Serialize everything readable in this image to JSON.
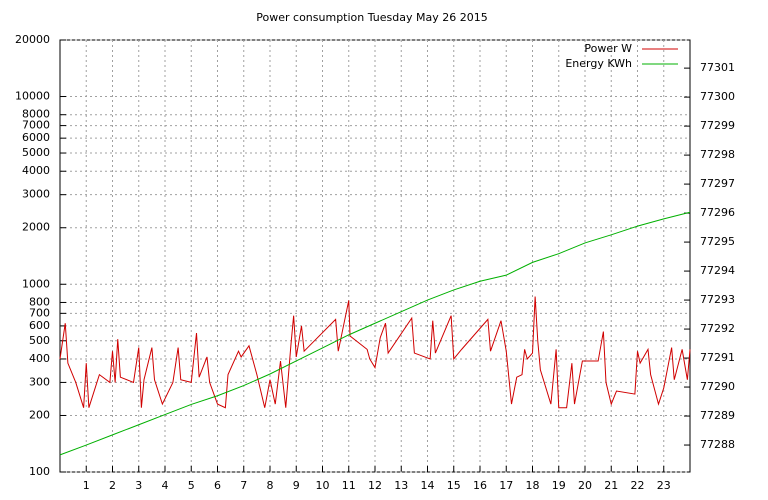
{
  "chart_data": {
    "type": "line",
    "title": "Power consumption Tuesday May 26 2015",
    "xlim": [
      0,
      24
    ],
    "xticks": [
      1,
      2,
      3,
      4,
      5,
      6,
      7,
      8,
      9,
      10,
      11,
      12,
      13,
      14,
      15,
      16,
      17,
      18,
      19,
      20,
      21,
      22,
      23
    ],
    "ylim": [
      100,
      20000
    ],
    "log_y": true,
    "yticks": [
      100,
      200,
      300,
      400,
      500,
      600,
      700,
      800,
      1000,
      2000,
      3000,
      4000,
      5000,
      6000,
      7000,
      8000,
      10000,
      20000
    ],
    "y2lim": [
      77287.07,
      77301.97
    ],
    "y2ticks": [
      77288,
      77289,
      77290,
      77291,
      77292,
      77293,
      77294,
      77295,
      77296,
      77297,
      77298,
      77299,
      77300,
      77301
    ],
    "grid": true,
    "legend": "top-right",
    "series": [
      {
        "name": "Power W",
        "color": "#d00000",
        "x": [
          0,
          0.2,
          0.3,
          0.6,
          0.9,
          1.0,
          1.1,
          1.5,
          1.9,
          2.0,
          2.1,
          2.2,
          2.3,
          2.8,
          3.0,
          3.1,
          3.2,
          3.5,
          3.6,
          3.9,
          4.3,
          4.5,
          4.6,
          5.0,
          5.2,
          5.3,
          5.6,
          5.7,
          6.0,
          6.3,
          6.4,
          6.8,
          6.9,
          7.2,
          7.5,
          7.8,
          8.0,
          8.2,
          8.4,
          8.6,
          8.8,
          8.9,
          9.0,
          9.2,
          9.3,
          10.5,
          10.6,
          11.0,
          11.05,
          11.7,
          11.8,
          12.0,
          12.2,
          12.4,
          12.5,
          13.4,
          13.5,
          14.1,
          14.2,
          14.3,
          14.9,
          15.0,
          15.3,
          16.3,
          16.4,
          16.8,
          17.0,
          17.2,
          17.4,
          17.6,
          17.7,
          17.8,
          18.0,
          18.1,
          18.2,
          18.3,
          18.7,
          18.9,
          19.0,
          19.3,
          19.5,
          19.6,
          19.9,
          20.5,
          20.7,
          20.8,
          21.0,
          21.2,
          21.9,
          22.0,
          22.1,
          22.4,
          22.5,
          22.8,
          23.0,
          23.3,
          23.4,
          23.7,
          23.9,
          24
        ],
        "values": [
          400,
          620,
          380,
          300,
          220,
          380,
          220,
          330,
          300,
          440,
          300,
          510,
          320,
          300,
          460,
          220,
          310,
          460,
          310,
          230,
          300,
          460,
          310,
          300,
          550,
          320,
          410,
          300,
          230,
          220,
          330,
          440,
          410,
          470,
          330,
          220,
          310,
          230,
          390,
          220,
          480,
          680,
          410,
          600,
          440,
          650,
          440,
          820,
          530,
          450,
          400,
          360,
          520,
          620,
          430,
          660,
          430,
          400,
          640,
          430,
          680,
          400,
          450,
          650,
          440,
          640,
          440,
          230,
          320,
          330,
          450,
          400,
          430,
          860,
          500,
          350,
          230,
          450,
          220,
          220,
          380,
          230,
          390,
          390,
          560,
          300,
          230,
          270,
          260,
          440,
          380,
          450,
          330,
          230,
          280,
          460,
          310,
          450,
          310,
          450
        ]
      },
      {
        "name": "Energy KWh",
        "color": "#00b000",
        "axis": "y2",
        "x": [
          0,
          1,
          2,
          3,
          4,
          5,
          6,
          7,
          8,
          9,
          10,
          11,
          12,
          13,
          14,
          15,
          16,
          17,
          18,
          19,
          20,
          21,
          22,
          23,
          24
        ],
        "values": [
          77287.66,
          77288.0,
          77288.35,
          77288.7,
          77289.05,
          77289.4,
          77289.7,
          77290.05,
          77290.45,
          77290.9,
          77291.35,
          77291.8,
          77292.2,
          77292.6,
          77293.0,
          77293.35,
          77293.65,
          77293.86,
          77294.3,
          77294.6,
          77294.97,
          77295.25,
          77295.55,
          77295.8,
          77296.03
        ]
      }
    ]
  }
}
